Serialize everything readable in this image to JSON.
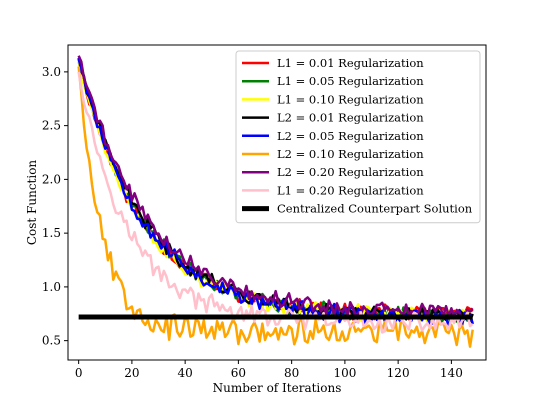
{
  "chart_data": {
    "type": "line",
    "title": "",
    "xlabel": "Number of Iterations",
    "ylabel": "Cost Function",
    "xlim": [
      -4,
      153
    ],
    "ylim": [
      0.32,
      3.25
    ],
    "xticks": [
      0,
      20,
      40,
      60,
      80,
      100,
      120,
      140
    ],
    "yticks": [
      0.5,
      1.0,
      1.5,
      2.0,
      2.5,
      3.0
    ],
    "xtick_labels": [
      "0",
      "20",
      "40",
      "60",
      "80",
      "100",
      "120",
      "140"
    ],
    "ytick_labels": [
      "0.5",
      "1.0",
      "1.5",
      "2.0",
      "2.5",
      "3.0"
    ],
    "grid": false,
    "legend_position": "top-right",
    "series": [
      {
        "name": "L1 = 0.01 Regularization",
        "color": "#ff0000",
        "linewidth": 2.5,
        "start": 3.1,
        "plateau": 0.74,
        "tau": 24,
        "noise": 0.06,
        "seed": 11
      },
      {
        "name": "L1 = 0.05 Regularization",
        "color": "#008000",
        "linewidth": 2.5,
        "start": 3.12,
        "plateau": 0.72,
        "tau": 25,
        "noise": 0.065,
        "seed": 23
      },
      {
        "name": "L1 = 0.10 Regularization",
        "color": "#ffff00",
        "linewidth": 2.5,
        "start": 3.1,
        "plateau": 0.73,
        "tau": 24,
        "noise": 0.065,
        "seed": 37
      },
      {
        "name": "L2 = 0.01 Regularization",
        "color": "#000000",
        "linewidth": 2.5,
        "start": 3.12,
        "plateau": 0.73,
        "tau": 25,
        "noise": 0.06,
        "seed": 41
      },
      {
        "name": "L2 = 0.05 Regularization",
        "color": "#0000ff",
        "linewidth": 2.5,
        "start": 3.13,
        "plateau": 0.7,
        "tau": 25,
        "noise": 0.07,
        "seed": 53
      },
      {
        "name": "L2 = 0.10 Regularization",
        "color": "#ffa500",
        "linewidth": 2.5,
        "start": 3.05,
        "plateau": 0.58,
        "tau": 9,
        "noise": 0.11,
        "seed": 67
      },
      {
        "name": "L2 = 0.20 Regularization",
        "color": "#800080",
        "linewidth": 2.5,
        "start": 3.15,
        "plateau": 0.75,
        "tau": 26,
        "noise": 0.065,
        "seed": 79
      },
      {
        "name": "L1 = 0.20 Regularization",
        "color": "#ffc0cb",
        "linewidth": 2.5,
        "start": 3.0,
        "plateau": 0.66,
        "tau": 19,
        "noise": 0.08,
        "seed": 97
      }
    ],
    "reference_line": {
      "name": "Centralized Counterpart Solution",
      "color": "#000000",
      "y": 0.72,
      "x": [
        0,
        148
      ],
      "linewidth": 5
    }
  }
}
